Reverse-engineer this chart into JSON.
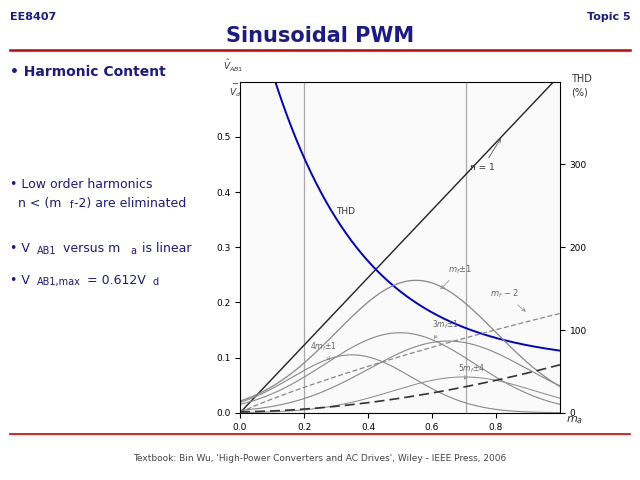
{
  "title": "Sinusoidal PWM",
  "header_left": "EE8407",
  "header_right": "Topic 5",
  "footer": "Textbook: Bin Wu, 'High-Power Converters and AC Drives', Wiley - IEEE Press, 2006",
  "bg_color": "#ffffff",
  "title_color": "#1a1a8c",
  "header_color": "#1a1a8c",
  "bullet_color": "#1a1a8c",
  "red_line_color": "#cc0000",
  "plot_bg": "#fafafa",
  "thd_color": "#0000cc",
  "n1_color": "#333333",
  "harmonic_color": "#888888",
  "dashed_color": "#333333",
  "vline_color": "#aaaaaa",
  "xlim": [
    0,
    1.0
  ],
  "ylim_left": [
    0,
    0.6
  ],
  "ylim_right": [
    0,
    400
  ],
  "yticks_left": [
    0,
    0.1,
    0.2,
    0.3,
    0.4,
    0.5
  ],
  "yticks_right": [
    0,
    100,
    200,
    300
  ],
  "xticks": [
    0,
    0.2,
    0.4,
    0.6,
    0.8
  ],
  "vlines": [
    0.2,
    0.707
  ]
}
